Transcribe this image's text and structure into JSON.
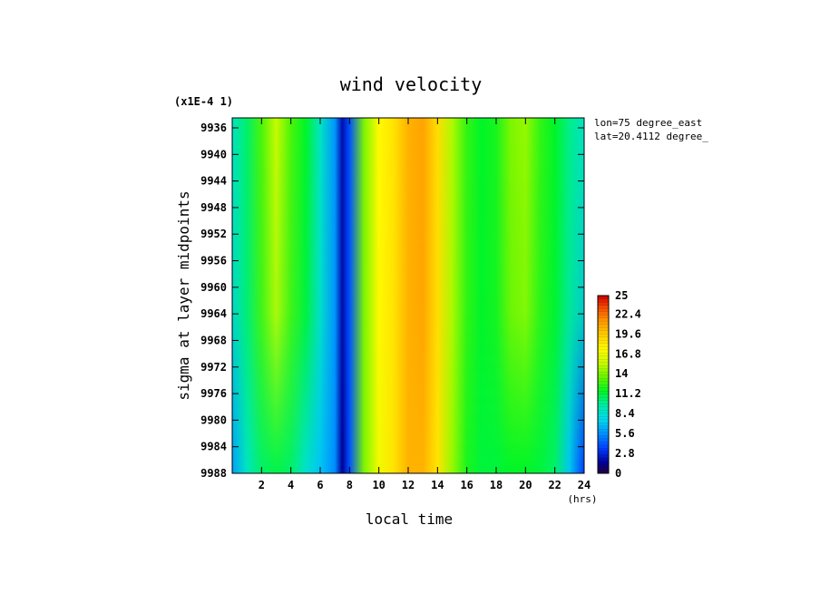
{
  "chart_data": {
    "type": "heatmap",
    "title": "wind velocity",
    "scale_note": "(x1E-4 1)",
    "xlabel": "local time",
    "xunit": "(hrs)",
    "ylabel": "sigma at layer midpoints",
    "annotations": [
      "lon=75 degree_east",
      "lat=20.4112 degree_"
    ],
    "x_ticks": [
      2,
      4,
      6,
      8,
      10,
      12,
      14,
      16,
      18,
      20,
      22,
      24
    ],
    "xlim": [
      0,
      24
    ],
    "y_ticks": [
      "9936",
      "9940",
      "9944",
      "9948",
      "9952",
      "9956",
      "9960",
      "9964",
      "9968",
      "9972",
      "9976",
      "9980",
      "9984",
      "9988"
    ],
    "ylim": [
      9934.5,
      9988
    ],
    "colorbar": {
      "min": 0,
      "max": 25,
      "tick_labels": [
        "0",
        "2.8",
        "5.6",
        "8.4",
        "11.2",
        "14",
        "16.8",
        "19.6",
        "22.4",
        "25"
      ]
    },
    "x": [
      0,
      1,
      2,
      3,
      4,
      5,
      6,
      7,
      7.5,
      8,
      9,
      10,
      11,
      12,
      13,
      14,
      15,
      16,
      17,
      18,
      19,
      20,
      21,
      22,
      23,
      24
    ],
    "profile_top": [
      8.8,
      10.5,
      13,
      15.5,
      13,
      11.5,
      8.8,
      5.8,
      2,
      4,
      14,
      17.5,
      18.5,
      20.5,
      21,
      18.8,
      15,
      12.5,
      11.5,
      12,
      14,
      14.5,
      12.5,
      11.5,
      10,
      8.8
    ],
    "profile_bottom": [
      6,
      8.8,
      10.5,
      11,
      10.5,
      8.5,
      7,
      5.5,
      1.5,
      4,
      14,
      17,
      18.5,
      20.5,
      20.5,
      18.5,
      14.5,
      12,
      11.2,
      11.2,
      11.5,
      11.5,
      11.2,
      10.5,
      7,
      3.5
    ]
  }
}
